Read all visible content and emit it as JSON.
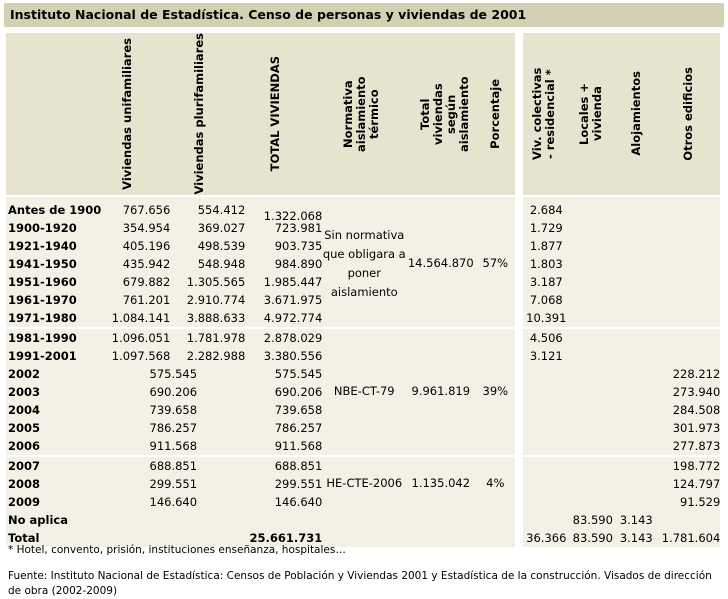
{
  "title": "Instituto Nacional de Estadística. Censo de personas y viviendas de 2001",
  "headers": {
    "unifamiliares": "Viviendas unifamiliares",
    "plurifamiliares": "Viviendas plurifamiliares",
    "total": "TOTAL VIVIENDAS",
    "normativa": "Normativa aislamiento térmico",
    "total_aislamiento": "Total viviendas según aislamiento",
    "porcentaje": "Porcentaje",
    "colectivas": "Viv. colectivas - residencial *",
    "locales": "Locales + vivienda",
    "alojamientos": "Alojamientos",
    "otros": "Otros edificios"
  },
  "rows": [
    {
      "label": "Antes de 1900",
      "uni": "767.656",
      "pluri": "554.412",
      "total": "1.322.068",
      "col": "2.684",
      "otros": ""
    },
    {
      "label": "1900-1920",
      "uni": "354.954",
      "pluri": "369.027",
      "total": "723.981",
      "col": "1.729",
      "otros": ""
    },
    {
      "label": "1921-1940",
      "uni": "405.196",
      "pluri": "498.539",
      "total": "903.735",
      "col": "1.877",
      "otros": ""
    },
    {
      "label": "1941-1950",
      "uni": "435.942",
      "pluri": "548.948",
      "total": "984.890",
      "col": "1.803",
      "otros": ""
    },
    {
      "label": "1951-1960",
      "uni": "679.882",
      "pluri": "1.305.565",
      "total": "1.985.447",
      "col": "3.187",
      "otros": ""
    },
    {
      "label": "1961-1970",
      "uni": "761.201",
      "pluri": "2.910.774",
      "total": "3.671.975",
      "col": "7.068",
      "otros": ""
    },
    {
      "label": "1971-1980",
      "uni": "1.084.141",
      "pluri": "3.888.633",
      "total": "4.972.774",
      "col": "10.391",
      "otros": ""
    },
    {
      "label": "1981-1990",
      "uni": "1.096.051",
      "pluri": "1.781.978",
      "total": "2.878.029",
      "col": "4.506",
      "otros": ""
    },
    {
      "label": "1991-2001",
      "uni": "1.097.568",
      "pluri": "2.282.988",
      "total": "3.380.556",
      "col": "3.121",
      "otros": ""
    },
    {
      "label": "2002",
      "combined": "575.545",
      "total": "575.545",
      "col": "",
      "otros": "228.212"
    },
    {
      "label": "2003",
      "combined": "690.206",
      "total": "690.206",
      "col": "",
      "otros": "273.940"
    },
    {
      "label": "2004",
      "combined": "739.658",
      "total": "739.658",
      "col": "",
      "otros": "284.508"
    },
    {
      "label": "2005",
      "combined": "786.257",
      "total": "786.257",
      "col": "",
      "otros": "301.973"
    },
    {
      "label": "2006",
      "combined": "911.568",
      "total": "911.568",
      "col": "",
      "otros": "277.873"
    },
    {
      "label": "2007",
      "combined": "688.851",
      "total": "688.851",
      "col": "",
      "otros": "198.772"
    },
    {
      "label": "2008",
      "combined": "299.551",
      "total": "299.551",
      "col": "",
      "otros": "124.797"
    },
    {
      "label": "2009",
      "combined": "146.640",
      "total": "146.640",
      "col": "",
      "otros": "91.529"
    }
  ],
  "groups": {
    "g1": {
      "normativa": "Sin normativa que obligara a poner aislamiento",
      "total": "14.564.870",
      "pct": "57%"
    },
    "g2": {
      "normativa": "NBE-CT-79",
      "total": "9.961.819",
      "pct": "39%"
    },
    "g3": {
      "normativa": "HE-CTE-2006",
      "total": "1.135.042",
      "pct": "4%"
    }
  },
  "no_aplica": {
    "label": "No aplica",
    "locales": "83.590",
    "alojamientos": "3.143"
  },
  "total_row": {
    "label": "Total",
    "total": "25.661.731",
    "col": "36.366",
    "locales": "83.590",
    "alojamientos": "3.143",
    "otros": "1.781.604"
  },
  "footnote": "*  Hotel, convento, prisión, instituciones enseñanza, hospitales…",
  "source": "Fuente: Instituto Nacional de Estadística: Censos de Población y Viviendas 2001 y Estadística de la construcción. Visados de dirección de obra (2002-2009)"
}
